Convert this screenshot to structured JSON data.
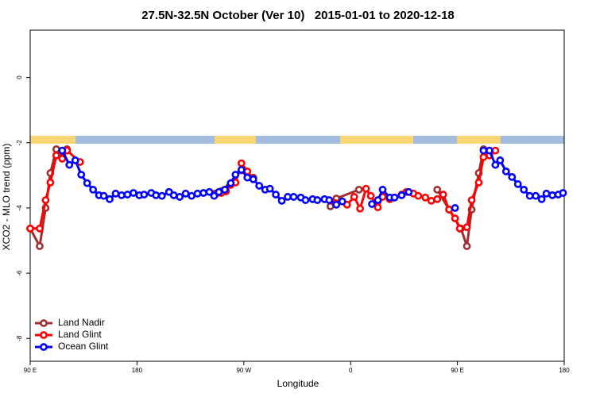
{
  "chart_data": {
    "type": "line",
    "title": "27.5N-32.5N October (Ver 10)   2015-01-01 to 2020-12-18",
    "x_label": "Longitude",
    "y_label": "XCO2 - MLO trend (ppm)",
    "xlim": [
      90,
      540
    ],
    "xticks": [
      {
        "value": 90,
        "label": "90 E"
      },
      180,
      {
        "value": 270,
        "label": "90 W"
      },
      {
        "value": 360,
        "label": "0"
      },
      {
        "value": 450,
        "label": "90 E"
      },
      {
        "value": 540,
        "label": "180"
      }
    ],
    "ylim": [
      -8.7,
      1.45
    ],
    "yticks": [
      0,
      -2,
      -4,
      -6,
      -8
    ],
    "legend": "bottom-left",
    "series": [
      {
        "name": "Land Nadir",
        "color": "#a03030",
        "x": [
          90,
          98,
          103,
          107,
          112,
          117,
          121,
          180,
          246,
          251,
          268,
          278,
          300,
          343,
          348,
          367,
          400,
          433,
          443,
          453,
          458,
          462,
          468,
          472
        ],
        "values": [
          -4.63,
          -5.17,
          -4.0,
          -2.93,
          -2.2,
          -2.44,
          -2.2,
          null,
          -3.56,
          -3.49,
          -2.85,
          -3.07,
          null,
          -3.95,
          -3.71,
          -3.44,
          null,
          -3.44,
          -4.05,
          -4.63,
          -5.17,
          -4.05,
          -2.93,
          -2.2
        ]
      },
      {
        "name": "Land Glint",
        "color": "#ff0000",
        "x": [
          90,
          98,
          103,
          107,
          112,
          117,
          121,
          132,
          200,
          246,
          251,
          255,
          259,
          263,
          268,
          273,
          278,
          310,
          347,
          353,
          357,
          363,
          368,
          373,
          377,
          383,
          387,
          393,
          397,
          403,
          407,
          413,
          417,
          423,
          428,
          433,
          438,
          443,
          448,
          452,
          458,
          462,
          468,
          472,
          477,
          482
        ],
        "values": [
          -4.63,
          -4.63,
          -3.76,
          -3.22,
          -2.39,
          -2.49,
          -2.24,
          -2.59,
          null,
          -3.59,
          -3.54,
          -3.49,
          -3.29,
          -3.22,
          -2.63,
          -2.88,
          -3.12,
          null,
          -3.85,
          -3.8,
          -3.9,
          -3.66,
          -4.02,
          -3.41,
          -3.63,
          -3.98,
          -3.66,
          -3.73,
          -3.68,
          -3.59,
          -3.51,
          -3.56,
          -3.63,
          -3.68,
          -3.78,
          -3.73,
          -3.59,
          -4.05,
          -4.32,
          -4.63,
          -4.59,
          -3.76,
          -3.22,
          -2.44,
          -2.39,
          -2.24
        ]
      },
      {
        "name": "Ocean Glint",
        "color": "#0000ff",
        "x": [
          117,
          123,
          128,
          133,
          138,
          143,
          148,
          152,
          157,
          162,
          167,
          172,
          177,
          182,
          186,
          192,
          196,
          201,
          207,
          211,
          216,
          221,
          226,
          231,
          236,
          241,
          245,
          249,
          254,
          259,
          263,
          268,
          273,
          278,
          283,
          288,
          292,
          297,
          302,
          307,
          312,
          318,
          322,
          328,
          332,
          338,
          342,
          348,
          353,
          365,
          378,
          383,
          387,
          393,
          397,
          403,
          409,
          430,
          448,
          460,
          472,
          477,
          482,
          486,
          491,
          496,
          501,
          506,
          511,
          516,
          521,
          525,
          530,
          535,
          539
        ],
        "values": [
          -2.24,
          -2.68,
          -2.54,
          -2.98,
          -3.24,
          -3.44,
          -3.61,
          -3.63,
          -3.73,
          -3.56,
          -3.61,
          -3.59,
          -3.54,
          -3.61,
          -3.59,
          -3.54,
          -3.61,
          -3.63,
          -3.51,
          -3.61,
          -3.66,
          -3.56,
          -3.63,
          -3.56,
          -3.54,
          -3.51,
          -3.63,
          -3.51,
          -3.44,
          -3.24,
          -2.98,
          -2.83,
          -3.07,
          -3.12,
          -3.32,
          -3.44,
          -3.41,
          -3.59,
          -3.78,
          -3.66,
          -3.66,
          -3.68,
          -3.76,
          -3.73,
          -3.76,
          -3.73,
          -3.76,
          -3.9,
          -3.8,
          null,
          -3.88,
          -3.76,
          -3.44,
          -3.68,
          -3.68,
          -3.61,
          -3.51,
          null,
          -4.0,
          null,
          -2.24,
          -2.24,
          -2.68,
          -2.54,
          -2.88,
          -3.05,
          -3.27,
          -3.44,
          -3.63,
          -3.63,
          -3.73,
          -3.56,
          -3.61,
          -3.59,
          -3.54
        ]
      }
    ]
  }
}
